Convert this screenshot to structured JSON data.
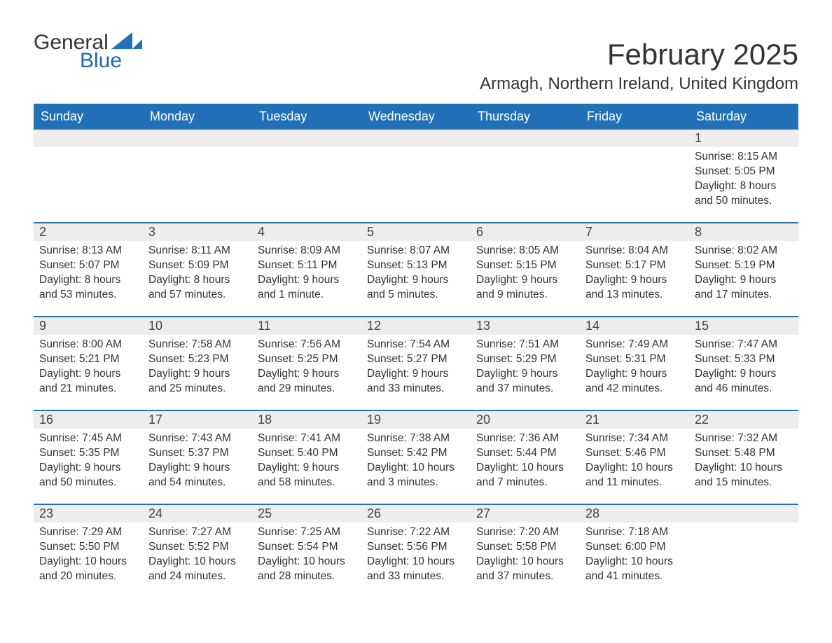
{
  "logo": {
    "word1": "General",
    "word2": "Blue"
  },
  "title": "February 2025",
  "location": "Armagh, Northern Ireland, United Kingdom",
  "style": {
    "accent": "#2270b8",
    "header_bg": "#2270b8",
    "header_text": "#ffffff",
    "daynum_bg": "#ededed",
    "text_color": "#333333",
    "background": "#ffffff",
    "title_fontsize": 42,
    "location_fontsize": 24,
    "dow_fontsize": 18,
    "daynum_fontsize": 18,
    "body_fontsize": 15.5,
    "columns": 7,
    "rows": 5,
    "first_weekday": "Sunday"
  },
  "days_of_week": [
    "Sunday",
    "Monday",
    "Tuesday",
    "Wednesday",
    "Thursday",
    "Friday",
    "Saturday"
  ],
  "grid": [
    [
      {
        "empty": true
      },
      {
        "empty": true
      },
      {
        "empty": true
      },
      {
        "empty": true
      },
      {
        "empty": true
      },
      {
        "empty": true
      },
      {
        "num": "1",
        "sunrise": "Sunrise: 8:15 AM",
        "sunset": "Sunset: 5:05 PM",
        "daylight1": "Daylight: 8 hours",
        "daylight2": "and 50 minutes."
      }
    ],
    [
      {
        "num": "2",
        "sunrise": "Sunrise: 8:13 AM",
        "sunset": "Sunset: 5:07 PM",
        "daylight1": "Daylight: 8 hours",
        "daylight2": "and 53 minutes."
      },
      {
        "num": "3",
        "sunrise": "Sunrise: 8:11 AM",
        "sunset": "Sunset: 5:09 PM",
        "daylight1": "Daylight: 8 hours",
        "daylight2": "and 57 minutes."
      },
      {
        "num": "4",
        "sunrise": "Sunrise: 8:09 AM",
        "sunset": "Sunset: 5:11 PM",
        "daylight1": "Daylight: 9 hours",
        "daylight2": "and 1 minute."
      },
      {
        "num": "5",
        "sunrise": "Sunrise: 8:07 AM",
        "sunset": "Sunset: 5:13 PM",
        "daylight1": "Daylight: 9 hours",
        "daylight2": "and 5 minutes."
      },
      {
        "num": "6",
        "sunrise": "Sunrise: 8:05 AM",
        "sunset": "Sunset: 5:15 PM",
        "daylight1": "Daylight: 9 hours",
        "daylight2": "and 9 minutes."
      },
      {
        "num": "7",
        "sunrise": "Sunrise: 8:04 AM",
        "sunset": "Sunset: 5:17 PM",
        "daylight1": "Daylight: 9 hours",
        "daylight2": "and 13 minutes."
      },
      {
        "num": "8",
        "sunrise": "Sunrise: 8:02 AM",
        "sunset": "Sunset: 5:19 PM",
        "daylight1": "Daylight: 9 hours",
        "daylight2": "and 17 minutes."
      }
    ],
    [
      {
        "num": "9",
        "sunrise": "Sunrise: 8:00 AM",
        "sunset": "Sunset: 5:21 PM",
        "daylight1": "Daylight: 9 hours",
        "daylight2": "and 21 minutes."
      },
      {
        "num": "10",
        "sunrise": "Sunrise: 7:58 AM",
        "sunset": "Sunset: 5:23 PM",
        "daylight1": "Daylight: 9 hours",
        "daylight2": "and 25 minutes."
      },
      {
        "num": "11",
        "sunrise": "Sunrise: 7:56 AM",
        "sunset": "Sunset: 5:25 PM",
        "daylight1": "Daylight: 9 hours",
        "daylight2": "and 29 minutes."
      },
      {
        "num": "12",
        "sunrise": "Sunrise: 7:54 AM",
        "sunset": "Sunset: 5:27 PM",
        "daylight1": "Daylight: 9 hours",
        "daylight2": "and 33 minutes."
      },
      {
        "num": "13",
        "sunrise": "Sunrise: 7:51 AM",
        "sunset": "Sunset: 5:29 PM",
        "daylight1": "Daylight: 9 hours",
        "daylight2": "and 37 minutes."
      },
      {
        "num": "14",
        "sunrise": "Sunrise: 7:49 AM",
        "sunset": "Sunset: 5:31 PM",
        "daylight1": "Daylight: 9 hours",
        "daylight2": "and 42 minutes."
      },
      {
        "num": "15",
        "sunrise": "Sunrise: 7:47 AM",
        "sunset": "Sunset: 5:33 PM",
        "daylight1": "Daylight: 9 hours",
        "daylight2": "and 46 minutes."
      }
    ],
    [
      {
        "num": "16",
        "sunrise": "Sunrise: 7:45 AM",
        "sunset": "Sunset: 5:35 PM",
        "daylight1": "Daylight: 9 hours",
        "daylight2": "and 50 minutes."
      },
      {
        "num": "17",
        "sunrise": "Sunrise: 7:43 AM",
        "sunset": "Sunset: 5:37 PM",
        "daylight1": "Daylight: 9 hours",
        "daylight2": "and 54 minutes."
      },
      {
        "num": "18",
        "sunrise": "Sunrise: 7:41 AM",
        "sunset": "Sunset: 5:40 PM",
        "daylight1": "Daylight: 9 hours",
        "daylight2": "and 58 minutes."
      },
      {
        "num": "19",
        "sunrise": "Sunrise: 7:38 AM",
        "sunset": "Sunset: 5:42 PM",
        "daylight1": "Daylight: 10 hours",
        "daylight2": "and 3 minutes."
      },
      {
        "num": "20",
        "sunrise": "Sunrise: 7:36 AM",
        "sunset": "Sunset: 5:44 PM",
        "daylight1": "Daylight: 10 hours",
        "daylight2": "and 7 minutes."
      },
      {
        "num": "21",
        "sunrise": "Sunrise: 7:34 AM",
        "sunset": "Sunset: 5:46 PM",
        "daylight1": "Daylight: 10 hours",
        "daylight2": "and 11 minutes."
      },
      {
        "num": "22",
        "sunrise": "Sunrise: 7:32 AM",
        "sunset": "Sunset: 5:48 PM",
        "daylight1": "Daylight: 10 hours",
        "daylight2": "and 15 minutes."
      }
    ],
    [
      {
        "num": "23",
        "sunrise": "Sunrise: 7:29 AM",
        "sunset": "Sunset: 5:50 PM",
        "daylight1": "Daylight: 10 hours",
        "daylight2": "and 20 minutes."
      },
      {
        "num": "24",
        "sunrise": "Sunrise: 7:27 AM",
        "sunset": "Sunset: 5:52 PM",
        "daylight1": "Daylight: 10 hours",
        "daylight2": "and 24 minutes."
      },
      {
        "num": "25",
        "sunrise": "Sunrise: 7:25 AM",
        "sunset": "Sunset: 5:54 PM",
        "daylight1": "Daylight: 10 hours",
        "daylight2": "and 28 minutes."
      },
      {
        "num": "26",
        "sunrise": "Sunrise: 7:22 AM",
        "sunset": "Sunset: 5:56 PM",
        "daylight1": "Daylight: 10 hours",
        "daylight2": "and 33 minutes."
      },
      {
        "num": "27",
        "sunrise": "Sunrise: 7:20 AM",
        "sunset": "Sunset: 5:58 PM",
        "daylight1": "Daylight: 10 hours",
        "daylight2": "and 37 minutes."
      },
      {
        "num": "28",
        "sunrise": "Sunrise: 7:18 AM",
        "sunset": "Sunset: 6:00 PM",
        "daylight1": "Daylight: 10 hours",
        "daylight2": "and 41 minutes."
      },
      {
        "empty": true
      }
    ]
  ]
}
